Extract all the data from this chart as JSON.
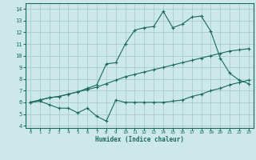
{
  "title": "",
  "xlabel": "Humidex (Indice chaleur)",
  "bg_color": "#cce8e8",
  "grid_color": "#aacccc",
  "line_color": "#1a6b5a",
  "xlim": [
    -0.5,
    23.5
  ],
  "ylim": [
    3.8,
    14.5
  ],
  "yticks": [
    4,
    5,
    6,
    7,
    8,
    9,
    10,
    11,
    12,
    13,
    14
  ],
  "xticks": [
    0,
    1,
    2,
    3,
    4,
    5,
    6,
    7,
    8,
    9,
    10,
    11,
    12,
    13,
    14,
    15,
    16,
    17,
    18,
    19,
    20,
    21,
    22,
    23
  ],
  "line1_x": [
    0,
    1,
    2,
    3,
    4,
    5,
    6,
    7,
    8,
    9,
    10,
    11,
    12,
    13,
    14,
    15,
    16,
    17,
    18,
    19,
    20,
    21,
    22,
    23
  ],
  "line1_y": [
    6.0,
    6.1,
    5.8,
    5.5,
    5.5,
    5.1,
    5.5,
    4.8,
    4.4,
    6.2,
    6.0,
    6.0,
    6.0,
    6.0,
    6.0,
    6.1,
    6.2,
    6.5,
    6.7,
    7.0,
    7.2,
    7.5,
    7.7,
    7.9
  ],
  "line2_x": [
    0,
    1,
    2,
    3,
    4,
    5,
    6,
    7,
    8,
    9,
    10,
    11,
    12,
    13,
    14,
    15,
    16,
    17,
    18,
    19,
    20,
    21,
    22,
    23
  ],
  "line2_y": [
    6.0,
    6.2,
    6.4,
    6.5,
    6.7,
    6.9,
    7.1,
    7.3,
    7.6,
    7.9,
    8.2,
    8.4,
    8.6,
    8.8,
    9.0,
    9.2,
    9.4,
    9.6,
    9.8,
    10.0,
    10.2,
    10.4,
    10.5,
    10.6
  ],
  "line3_x": [
    0,
    1,
    2,
    3,
    4,
    5,
    6,
    7,
    8,
    9,
    10,
    11,
    12,
    13,
    14,
    15,
    16,
    17,
    18,
    19,
    20,
    21,
    22,
    23
  ],
  "line3_y": [
    6.0,
    6.2,
    6.4,
    6.5,
    6.7,
    6.9,
    7.2,
    7.5,
    9.3,
    9.4,
    11.0,
    12.2,
    12.4,
    12.5,
    13.8,
    12.4,
    12.7,
    13.3,
    13.4,
    12.1,
    9.8,
    8.5,
    7.9,
    7.6
  ]
}
